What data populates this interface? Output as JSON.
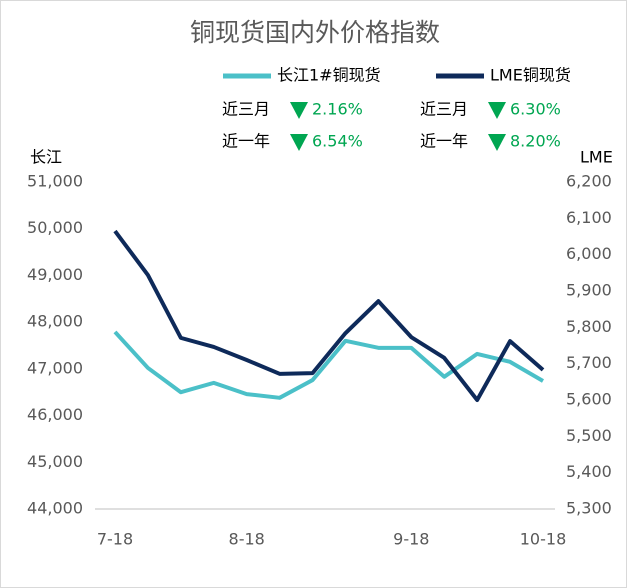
{
  "chart_data": {
    "type": "line",
    "title": "铜现货国内外价格指数",
    "y_label": "长江",
    "y2_label": "LME",
    "categories": [
      "7-18",
      null,
      null,
      null,
      "8-18",
      null,
      null,
      null,
      null,
      "9-18",
      null,
      null,
      null,
      "10-18"
    ],
    "series": [
      {
        "name": "长江1#铜现货",
        "color": "#4bc0c8",
        "values": [
          47790,
          47020,
          46500,
          46700,
          46460,
          46380,
          46760,
          47600,
          47450,
          47450,
          46830,
          47320,
          47150,
          46740
        ]
      },
      {
        "name": "LME铜现货",
        "color": "#0e2a5a",
        "axis": "y2",
        "values": [
          6065,
          5944,
          5771,
          5746,
          5710,
          5672,
          5674,
          5784,
          5872,
          5773,
          5716,
          5600,
          5762,
          5683
        ]
      }
    ],
    "annotations": [
      {
        "label": "近三月",
        "value": "2.16%"
      },
      {
        "label": "近三月",
        "value": "6.30%"
      },
      {
        "label": "近一年",
        "value": "6.54%"
      },
      {
        "label": "近一年",
        "value": "8.20%"
      }
    ],
    "ylim": [
      44000,
      51000
    ],
    "yticks": [
      {
        "value": 44000,
        "label": "44,000"
      },
      {
        "value": 45000,
        "label": "45,000"
      },
      {
        "value": 46000,
        "label": "46,000"
      },
      {
        "value": 47000,
        "label": "47,000"
      },
      {
        "value": 48000,
        "label": "48,000"
      },
      {
        "value": 49000,
        "label": "49,000"
      },
      {
        "value": 50000,
        "label": "50,000"
      },
      {
        "value": 51000,
        "label": "51,000"
      }
    ],
    "y2lim": [
      5300,
      6200
    ],
    "y2ticks": [
      {
        "value": 5300,
        "label": "5,300"
      },
      {
        "value": 5400,
        "label": "5,400"
      },
      {
        "value": 5500,
        "label": "5,500"
      },
      {
        "value": 5600,
        "label": "5,600"
      },
      {
        "value": 5700,
        "label": "5,700"
      },
      {
        "value": 5800,
        "label": "5,800"
      },
      {
        "value": 5900,
        "label": "5,900"
      },
      {
        "value": 6000,
        "label": "6,000"
      },
      {
        "value": 6100,
        "label": "6,100"
      },
      {
        "value": 6200,
        "label": "6,200"
      }
    ],
    "grid": false
  }
}
